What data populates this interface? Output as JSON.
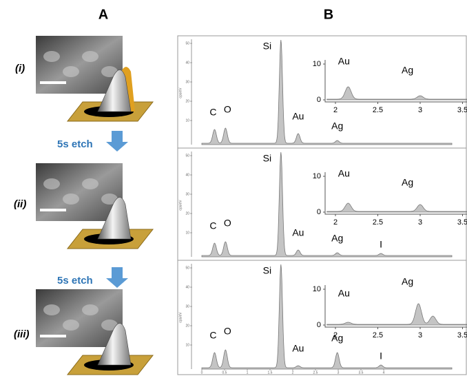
{
  "panel_a": {
    "label": "A",
    "stages": [
      "(i)",
      "(ii)",
      "(iii)"
    ],
    "steps": [
      "5s etch",
      "5s etch"
    ]
  },
  "panel_b": {
    "label": "B",
    "y_axis_label": "cps/eV",
    "yticks": [
      10,
      20,
      30,
      40,
      50
    ],
    "xticks": [
      0,
      0.5,
      1,
      1.5,
      2,
      2.5,
      3,
      3.5,
      4
    ],
    "spectra": [
      {
        "labels": [
          "Si",
          "C",
          "O",
          "Au",
          "Ag"
        ],
        "inset": {
          "labels": [
            "Au",
            "Ag"
          ],
          "yticks": [
            0,
            10
          ],
          "xticks": [
            2,
            2.5,
            3,
            3.5
          ]
        }
      },
      {
        "labels": [
          "Si",
          "C",
          "O",
          "Au",
          "Ag",
          "I"
        ],
        "inset": {
          "labels": [
            "Au",
            "Ag"
          ],
          "yticks": [
            0,
            10
          ],
          "xticks": [
            2,
            2.5,
            3,
            3.5
          ]
        }
      },
      {
        "labels": [
          "Si",
          "C",
          "O",
          "Au",
          "Ag",
          "I"
        ],
        "inset": {
          "labels": [
            "Au",
            "Ag"
          ],
          "yticks": [
            0,
            10
          ],
          "xticks": [
            2,
            2.5,
            3,
            3.5
          ]
        }
      }
    ]
  }
}
